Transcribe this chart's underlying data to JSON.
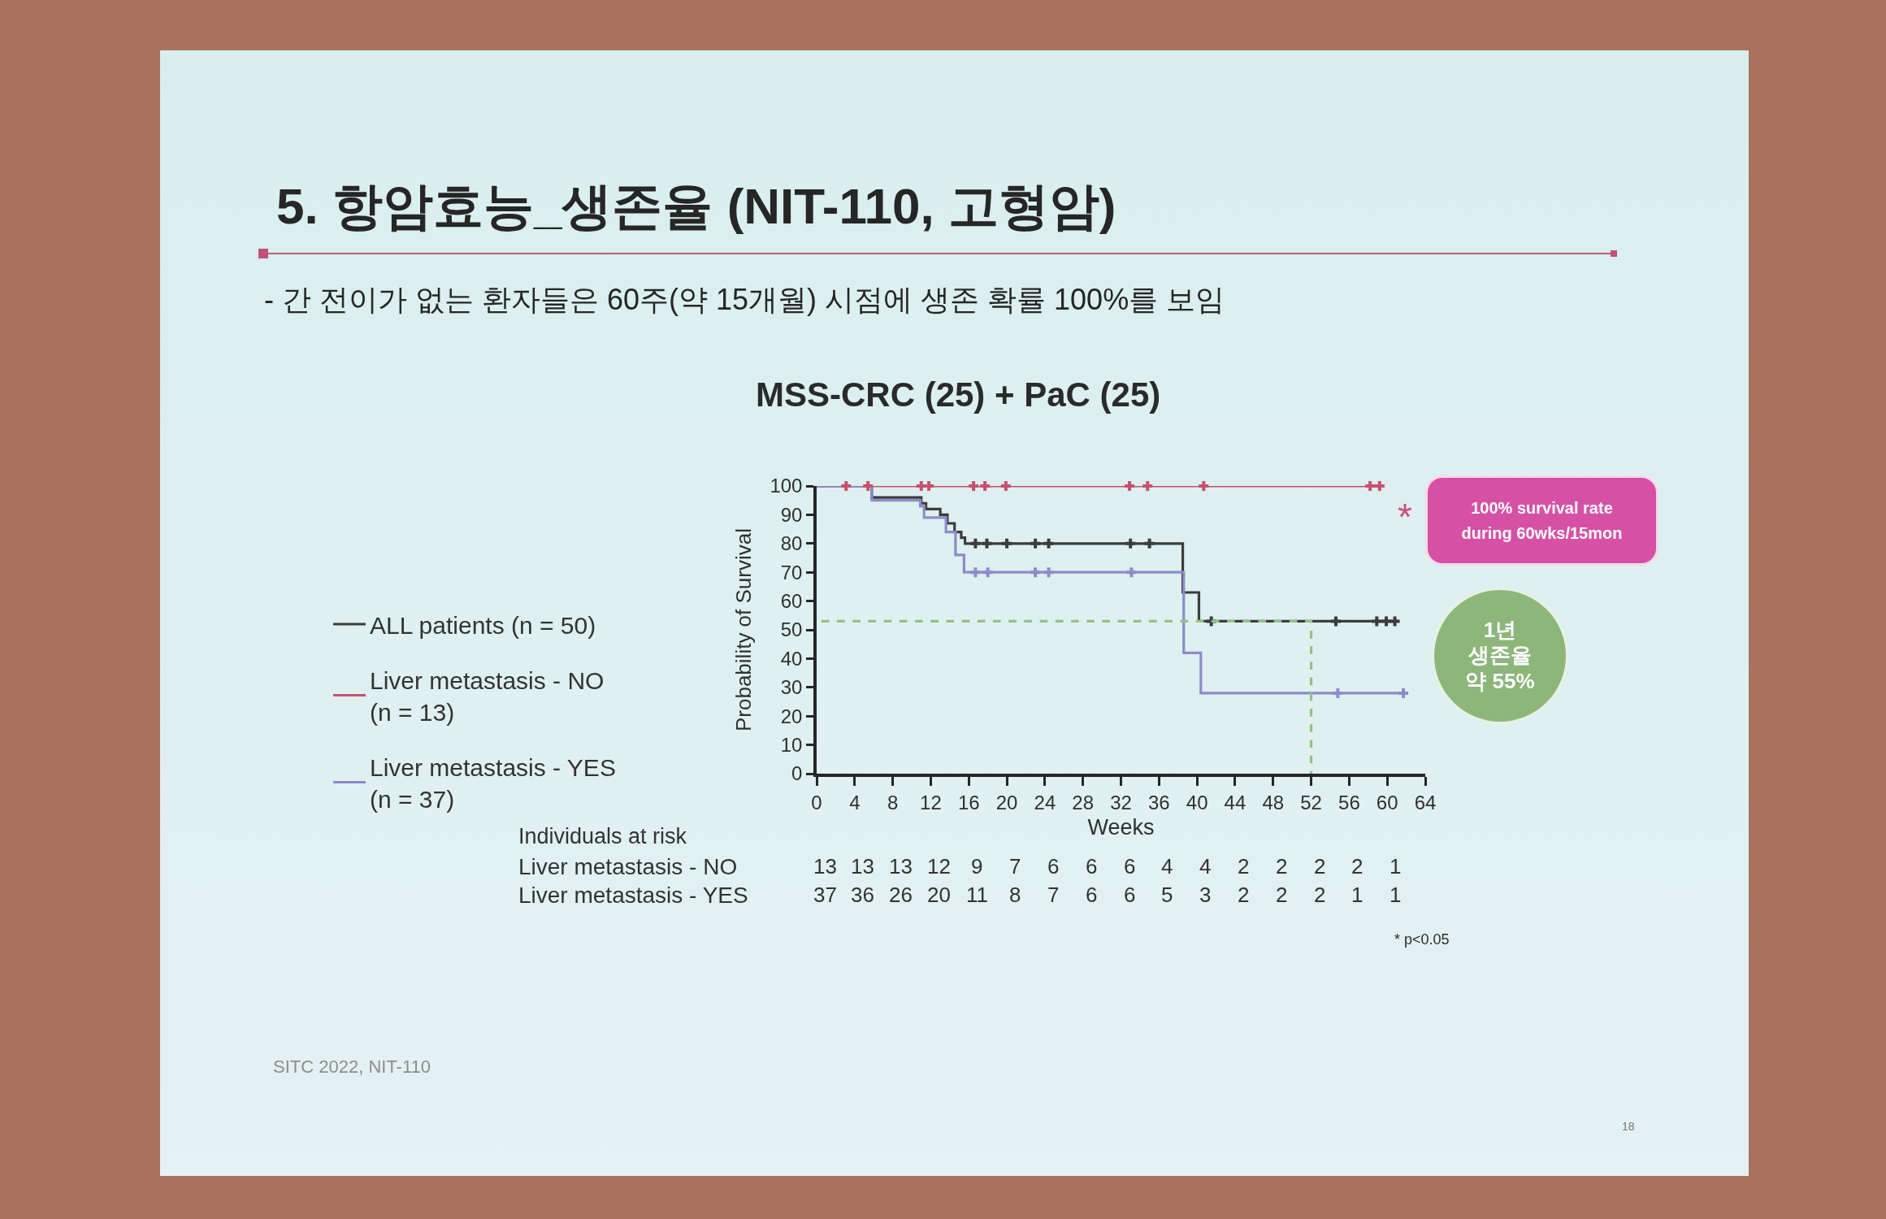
{
  "chart_data": {
    "type": "step",
    "title": "5. 항암효능_생존율 (NIT-110, 고형암)",
    "subtitle": "- 간 전이가 없는 환자들은 60주(약 15개월) 시점에 생존 확률 100%를 보임",
    "xlabel": "Weeks",
    "ylabel": "Probability of Survival",
    "xlim": [
      0,
      64
    ],
    "xticks": [
      0,
      4,
      8,
      12,
      16,
      20,
      24,
      28,
      32,
      36,
      40,
      44,
      48,
      52,
      56,
      60,
      64
    ],
    "ylim": [
      0,
      100
    ],
    "yticks": [
      0,
      10,
      20,
      30,
      40,
      50,
      60,
      70,
      80,
      90,
      100
    ],
    "legend": "left",
    "series": [
      {
        "name": "ALL patients (n = 50)",
        "color": "#3c3c3c",
        "x": [
          0,
          5.8,
          11,
          11.5,
          13,
          13.75,
          14.5,
          15.2,
          15.6,
          38.5,
          40.2,
          61.2
        ],
        "values": [
          100,
          96,
          94,
          92,
          90,
          87,
          84,
          82,
          80,
          63,
          53,
          53
        ]
      },
      {
        "name": "Liver metastasis - NO (n = 13)",
        "color": "#c8506e",
        "x": [
          0,
          59.6
        ],
        "values": [
          100,
          100
        ]
      },
      {
        "name": "Liver metastasis - YES (n = 37)",
        "color": "#8c8ccc",
        "x": [
          0,
          5.8,
          10.9,
          11.3,
          13.6,
          14.6,
          15.5,
          38.6,
          40.4,
          61.7
        ],
        "values": [
          100,
          95,
          93,
          89,
          84,
          76,
          70,
          42,
          28,
          28
        ]
      },
      {
        "type": "scatter",
        "marker": "cross",
        "color": "#3c3c3c",
        "x": [
          16.7,
          17.9,
          20,
          23,
          24.4,
          33,
          35,
          41.5,
          54.6,
          58.9,
          59.9,
          60.8
        ],
        "values": [
          80,
          80,
          80,
          80,
          80,
          80,
          80,
          53,
          53,
          53,
          53,
          53
        ]
      },
      {
        "type": "scatter",
        "marker": "cross",
        "color": "#c8506e",
        "x": [
          3.1,
          5.4,
          11,
          11.8,
          16.5,
          17.7,
          19.9,
          32.9,
          34.8,
          40.7,
          58.2,
          59.2
        ],
        "values": [
          100,
          100,
          100,
          100,
          100,
          100,
          100,
          100,
          100,
          100,
          100,
          100
        ]
      },
      {
        "type": "scatter",
        "marker": "cross",
        "color": "#8c8ccc",
        "x": [
          16.7,
          18,
          23,
          24.4,
          33.1,
          54.8,
          61.7
        ],
        "values": [
          70,
          70,
          70,
          70,
          70,
          28,
          28
        ]
      },
      {
        "type": "line",
        "line_style": "dashed",
        "color": "#94c08a",
        "x": [
          0.5,
          52,
          52
        ],
        "values": [
          53,
          53,
          0
        ]
      }
    ],
    "annotations": [
      "MSS-CRC (25) + PaC (25)",
      "Individuals at risk",
      "Liver metastasis - NO",
      "13 13 13 12 9 7 6 6 6 4 4 2 2 2 2 1",
      "Liver metastasis - YES",
      "37 36 26 20 11 8 7 6 6 5 3 2 2 2 1 1",
      "* p<0.05",
      "*",
      "100% survival rate during 60wks/15mon",
      "1년 생존율 약 55%",
      "SITC 2022, NIT-110",
      "18"
    ]
  }
}
